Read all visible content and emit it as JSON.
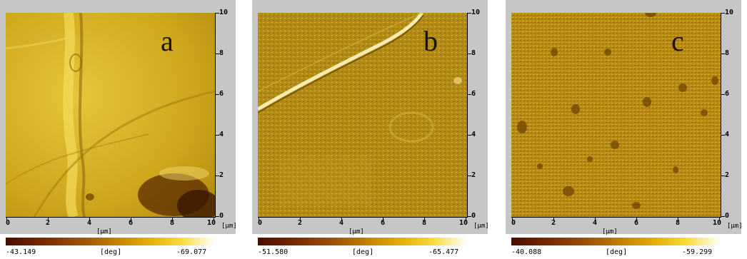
{
  "panels": [
    {
      "letter": "a",
      "y_ticks": [
        "10",
        "8",
        "6",
        "4",
        "2",
        "0"
      ],
      "x_ticks": [
        "0",
        "2",
        "4",
        "6",
        "8",
        "10"
      ],
      "axis_unit": "[μm]",
      "colorbar": {
        "min_label": "-43.149",
        "unit": "[deg]",
        "max_label": "-69.077"
      },
      "colors": {
        "base": "#c9a516",
        "light": "#ead24a",
        "dark": "#5a2a00"
      }
    },
    {
      "letter": "b",
      "y_ticks": [
        "10",
        "8",
        "6",
        "4",
        "2",
        "0"
      ],
      "x_ticks": [
        "0",
        "2",
        "4",
        "6",
        "8",
        "10"
      ],
      "axis_unit": "[μm]",
      "colorbar": {
        "min_label": "-51.580",
        "unit": "[deg]",
        "max_label": "-65.477"
      },
      "colors": {
        "base": "#b08a13",
        "light": "#f2e08a",
        "dark": "#5a3400"
      }
    },
    {
      "letter": "c",
      "y_ticks": [
        "10",
        "8",
        "6",
        "4",
        "2",
        "0"
      ],
      "x_ticks": [
        "0",
        "2",
        "4",
        "6",
        "8",
        "10"
      ],
      "axis_unit": "[μm]",
      "colorbar": {
        "min_label": "-40.088",
        "unit": "[deg]",
        "max_label": "-59.299"
      },
      "colors": {
        "base": "#b98c14",
        "light": "#e2c24a",
        "dark": "#6a3a00"
      }
    }
  ]
}
